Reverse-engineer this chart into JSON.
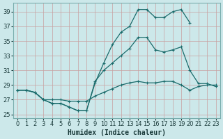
{
  "xlabel": "Humidex (Indice chaleur)",
  "bg_color": "#cce8ea",
  "grid_color": "#b8d4d6",
  "line_color": "#1a6b6b",
  "xlim": [
    -0.5,
    23.5
  ],
  "ylim": [
    24.5,
    40.2
  ],
  "xticks": [
    0,
    1,
    2,
    3,
    4,
    5,
    6,
    7,
    8,
    9,
    10,
    11,
    12,
    13,
    14,
    15,
    16,
    17,
    18,
    19,
    20,
    21,
    22,
    23
  ],
  "yticks": [
    25,
    27,
    29,
    31,
    33,
    35,
    37,
    39
  ],
  "line_upper_x": [
    0,
    1,
    2,
    3,
    4,
    5,
    6,
    7,
    8,
    9,
    10,
    11,
    12,
    13,
    14,
    15,
    16,
    17,
    18,
    19,
    20
  ],
  "line_upper_y": [
    28.3,
    28.3,
    28.0,
    27.0,
    26.5,
    26.5,
    26.0,
    25.5,
    25.5,
    29.3,
    32.0,
    34.5,
    36.2,
    37.0,
    39.3,
    39.3,
    38.2,
    38.2,
    39.0,
    39.3,
    37.5
  ],
  "line_mid_x": [
    0,
    1,
    2,
    3,
    4,
    5,
    6,
    7,
    8,
    9,
    10,
    11,
    12,
    13,
    14,
    15,
    16,
    17,
    18,
    19,
    20,
    21,
    22,
    23
  ],
  "line_mid_y": [
    28.3,
    28.3,
    28.0,
    27.0,
    26.5,
    26.5,
    26.0,
    25.5,
    25.5,
    29.5,
    31.0,
    32.0,
    33.0,
    34.0,
    35.5,
    35.5,
    33.8,
    33.5,
    33.8,
    34.2,
    31.0,
    29.2,
    29.2,
    28.8
  ],
  "line_low_x": [
    0,
    1,
    2,
    3,
    4,
    5,
    6,
    7,
    8,
    9,
    10,
    11,
    12,
    13,
    14,
    15,
    16,
    17,
    18,
    19,
    20,
    21,
    22,
    23
  ],
  "line_low_y": [
    28.3,
    28.3,
    28.0,
    27.0,
    27.0,
    27.0,
    26.8,
    26.8,
    26.8,
    27.5,
    28.0,
    28.5,
    29.0,
    29.3,
    29.5,
    29.3,
    29.3,
    29.5,
    29.5,
    29.0,
    28.3,
    28.8,
    29.0,
    29.0
  ]
}
